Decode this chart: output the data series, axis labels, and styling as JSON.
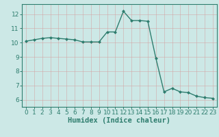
{
  "x": [
    0,
    1,
    2,
    3,
    4,
    5,
    6,
    7,
    8,
    9,
    10,
    11,
    12,
    13,
    14,
    15,
    16,
    17,
    18,
    19,
    20,
    21,
    22,
    23
  ],
  "y": [
    10.1,
    10.2,
    10.3,
    10.35,
    10.3,
    10.25,
    10.2,
    10.05,
    10.05,
    10.05,
    10.75,
    10.75,
    12.2,
    11.55,
    11.55,
    11.5,
    8.9,
    6.55,
    6.8,
    6.55,
    6.5,
    6.25,
    6.15,
    6.1
  ],
  "xlabel": "Humidex (Indice chaleur)",
  "xlim": [
    -0.5,
    23.5
  ],
  "ylim": [
    5.5,
    12.7
  ],
  "yticks": [
    6,
    7,
    8,
    9,
    10,
    11,
    12
  ],
  "xticks": [
    0,
    1,
    2,
    3,
    4,
    5,
    6,
    7,
    8,
    9,
    10,
    11,
    12,
    13,
    14,
    15,
    16,
    17,
    18,
    19,
    20,
    21,
    22,
    23
  ],
  "line_color": "#2e7d6e",
  "marker": "D",
  "marker_size": 2.0,
  "bg_color": "#cce8e6",
  "grid_color": "#b8d4d2",
  "axes_color": "#2e7d6e",
  "tick_color": "#2e7d6e",
  "label_color": "#2e7d6e",
  "tick_fontsize": 6.5,
  "xlabel_fontsize": 7.5
}
